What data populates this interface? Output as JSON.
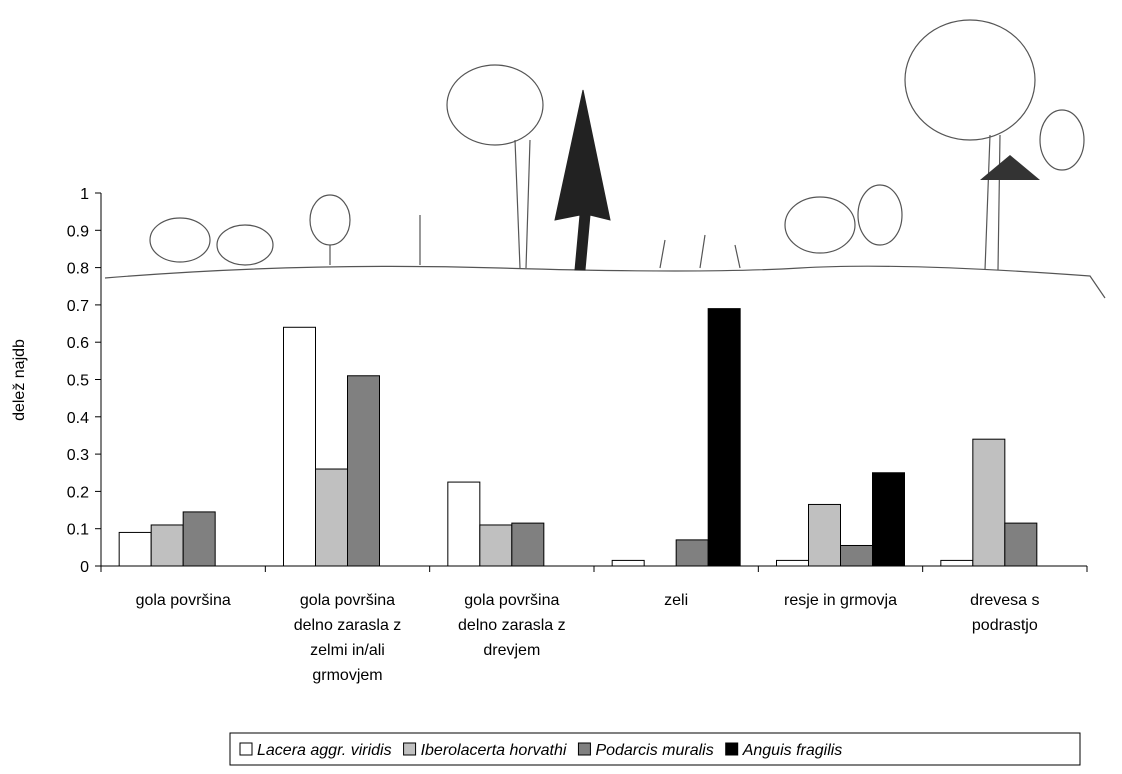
{
  "chart_data": {
    "type": "bar",
    "y_label": "delež najdb",
    "categories": [
      "gola površina",
      "gola površina delno zarasla z zelmi in/ali grmovjem",
      "gola površina delno zarasla z drevjem",
      "zeli",
      "resje in grmovja",
      "drevesa s podrastjo"
    ],
    "series": [
      {
        "name": "Lacera aggr. viridis",
        "color": "#ffffff",
        "values": [
          0.09,
          0.64,
          0.225,
          0.015,
          0.015,
          0.015
        ]
      },
      {
        "name": "Iberolacerta horvathi",
        "color": "#c0c0c0",
        "values": [
          0.11,
          0.26,
          0.11,
          0,
          0.165,
          0.34
        ]
      },
      {
        "name": "Podarcis muralis",
        "color": "#808080",
        "values": [
          0.145,
          0.51,
          0.115,
          0.07,
          0.055,
          0.115
        ]
      },
      {
        "name": "Anguis fragilis",
        "color": "#000000",
        "values": [
          0,
          0,
          0,
          0.69,
          0.25,
          0
        ]
      }
    ],
    "ylim": [
      0,
      1
    ],
    "yticks": [
      0,
      0.1,
      0.2,
      0.3,
      0.4,
      0.5,
      0.6,
      0.7,
      0.8,
      0.9,
      1
    ],
    "grid": false,
    "legend": "bottom"
  }
}
